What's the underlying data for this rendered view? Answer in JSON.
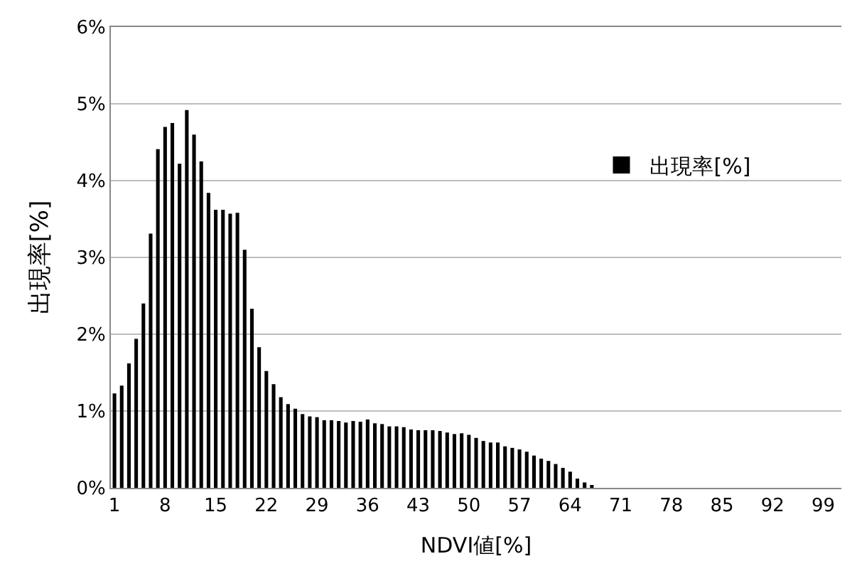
{
  "chart_data": {
    "type": "bar",
    "xlabel": "NDVI値[%]",
    "ylabel": "出現率[%]",
    "categories": [
      "1",
      null,
      null,
      null,
      null,
      null,
      null,
      "8",
      null,
      null,
      null,
      null,
      null,
      null,
      "15",
      null,
      null,
      null,
      null,
      null,
      null,
      "22",
      null,
      null,
      null,
      null,
      null,
      null,
      "29",
      null,
      null,
      null,
      null,
      null,
      null,
      "36",
      null,
      null,
      null,
      null,
      null,
      null,
      "43",
      null,
      null,
      null,
      null,
      null,
      null,
      "50",
      null,
      null,
      null,
      null,
      null,
      null,
      "57",
      null,
      null,
      null,
      null,
      null,
      null,
      "64",
      null,
      null,
      null,
      null,
      null,
      null,
      "71",
      null,
      null,
      null,
      null,
      null,
      null,
      "78",
      null,
      null,
      null,
      null,
      null,
      null,
      "85",
      null,
      null,
      null,
      null,
      null,
      null,
      "92",
      null,
      null,
      null,
      null,
      null,
      null,
      "99",
      null,
      null
    ],
    "series": [
      {
        "name": "出現率[%]",
        "color": "#000000",
        "values": [
          1.23,
          1.33,
          1.62,
          1.94,
          2.4,
          3.31,
          4.41,
          4.7,
          4.75,
          4.22,
          4.92,
          4.6,
          4.25,
          3.84,
          3.62,
          3.62,
          3.57,
          3.58,
          3.1,
          2.33,
          1.83,
          1.52,
          1.35,
          1.18,
          1.09,
          1.03,
          0.96,
          0.93,
          0.92,
          0.88,
          0.88,
          0.87,
          0.85,
          0.87,
          0.86,
          0.89,
          0.84,
          0.83,
          0.8,
          0.8,
          0.79,
          0.76,
          0.75,
          0.75,
          0.75,
          0.74,
          0.72,
          0.7,
          0.71,
          0.69,
          0.65,
          0.61,
          0.59,
          0.59,
          0.54,
          0.52,
          0.5,
          0.47,
          0.42,
          0.38,
          0.35,
          0.31,
          0.26,
          0.21,
          0.12,
          0.07,
          0.03,
          0,
          0,
          0,
          0,
          0,
          0,
          0,
          0,
          0,
          0,
          0,
          0,
          0,
          0,
          0,
          0,
          0,
          0,
          0,
          0,
          0,
          0,
          0,
          0,
          0,
          0,
          0,
          0,
          0,
          0,
          0,
          0,
          0,
          0
        ]
      }
    ],
    "ylim": [
      0,
      6
    ],
    "yticks": [
      {
        "value": 0,
        "label": "0%"
      },
      {
        "value": 1,
        "label": "1%"
      },
      {
        "value": 2,
        "label": "2%"
      },
      {
        "value": 3,
        "label": "3%"
      },
      {
        "value": 4,
        "label": "4%"
      },
      {
        "value": 5,
        "label": "5%"
      },
      {
        "value": 6,
        "label": "6%"
      }
    ],
    "grid": "y",
    "legend": "right"
  }
}
